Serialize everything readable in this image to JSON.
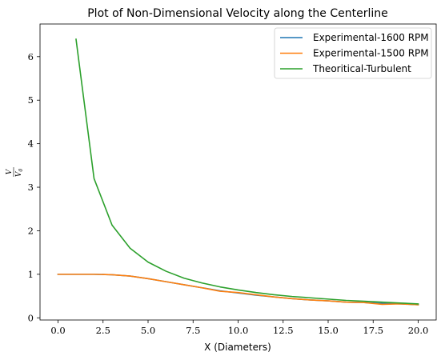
{
  "chart_data": {
    "type": "line",
    "title": "Plot of Non-Dimensional Velocity along the Centerline",
    "xlabel": "X (Diameters)",
    "ylabel": {
      "numerator": "V",
      "denominator": "V",
      "denominator_subscript": "0"
    },
    "xlim": [
      -1.0,
      21.0
    ],
    "ylim": [
      -0.05,
      6.75
    ],
    "xticks": [
      0.0,
      2.5,
      5.0,
      7.5,
      10.0,
      12.5,
      15.0,
      17.5,
      20.0
    ],
    "xtick_labels": [
      "0.0",
      "2.5",
      "5.0",
      "7.5",
      "10.0",
      "12.5",
      "15.0",
      "17.5",
      "20.0"
    ],
    "yticks": [
      0,
      1,
      2,
      3,
      4,
      5,
      6
    ],
    "ytick_labels": [
      "0",
      "1",
      "2",
      "3",
      "4",
      "5",
      "6"
    ],
    "grid": false,
    "legend_position": "top-right",
    "series": [
      {
        "name": "Experimental-1600 RPM",
        "color": "#1f77b4",
        "x": [
          0,
          1,
          2,
          3,
          4,
          5,
          6,
          7,
          8,
          9,
          10,
          11,
          12,
          13,
          14,
          15,
          16,
          17,
          18,
          19,
          20
        ],
        "y": [
          1.0,
          1.0,
          1.0,
          0.99,
          0.96,
          0.9,
          0.83,
          0.76,
          0.69,
          0.62,
          0.57,
          0.52,
          0.48,
          0.44,
          0.41,
          0.39,
          0.36,
          0.35,
          0.33,
          0.32,
          0.3
        ]
      },
      {
        "name": "Experimental-1500 RPM",
        "color": "#ff7f0e",
        "x": [
          0,
          1,
          2,
          3,
          4,
          5,
          6,
          7,
          8,
          9,
          10,
          11,
          12,
          13,
          14,
          15,
          16,
          17,
          18,
          19,
          20
        ],
        "y": [
          1.0,
          1.0,
          1.0,
          0.99,
          0.96,
          0.9,
          0.83,
          0.76,
          0.69,
          0.61,
          0.58,
          0.53,
          0.48,
          0.44,
          0.41,
          0.39,
          0.36,
          0.35,
          0.31,
          0.32,
          0.3
        ]
      },
      {
        "name": "Theoritical-Turbulent",
        "color": "#2ca02c",
        "x": [
          1,
          2,
          3,
          4,
          5,
          6,
          7,
          8,
          9,
          10,
          11,
          12,
          13,
          14,
          15,
          16,
          17,
          18,
          19,
          20
        ],
        "y": [
          6.4,
          3.2,
          2.13,
          1.6,
          1.28,
          1.07,
          0.91,
          0.8,
          0.71,
          0.64,
          0.58,
          0.53,
          0.49,
          0.46,
          0.43,
          0.4,
          0.38,
          0.36,
          0.34,
          0.32
        ]
      }
    ]
  }
}
